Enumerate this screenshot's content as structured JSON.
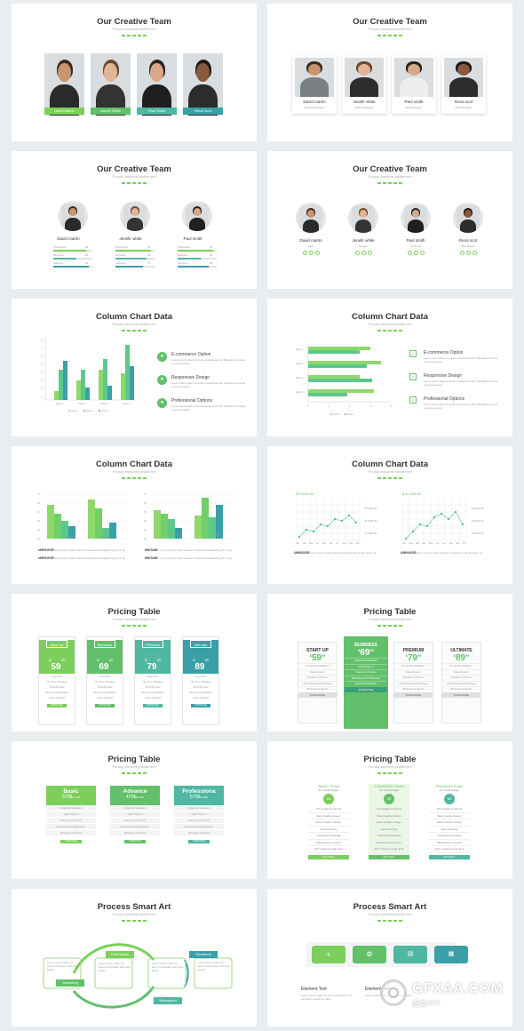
{
  "titles": {
    "team": "Our Creative Team",
    "chart": "Column Chart Data",
    "pricing": "Pricing Table",
    "process": "Process Smart Art"
  },
  "subtitle": "Put your awesome subtitle here",
  "slide1": {
    "members": [
      "David Martin",
      "Jenefir White",
      "Paul Smith",
      "Rena Scot"
    ]
  },
  "slide2": {
    "members": [
      {
        "name": "David martin",
        "role": "Creative Designer"
      },
      {
        "name": "Jenefir white",
        "role": "Web Developer"
      },
      {
        "name": "Paul smith",
        "role": "Web Designer"
      },
      {
        "name": "Rena scot",
        "role": "Web Manager"
      }
    ]
  },
  "slide3": {
    "members": [
      {
        "name": "David martin",
        "skills": [
          {
            "label": "Photoshop",
            "pct": 84
          },
          {
            "label": "Ilustrator",
            "pct": 60
          },
          {
            "label": "Indesign",
            "pct": 90
          }
        ]
      },
      {
        "name": "Jenefir white",
        "skills": [
          {
            "label": "Photoshop",
            "pct": 90
          },
          {
            "label": "Ilustrator",
            "pct": 80
          },
          {
            "label": "Indesign",
            "pct": 70
          }
        ]
      },
      {
        "name": "Paul smith",
        "skills": [
          {
            "label": "Photoshop",
            "pct": 90
          },
          {
            "label": "Ilustrator",
            "pct": 60
          },
          {
            "label": "Indesign",
            "pct": 80
          }
        ]
      }
    ]
  },
  "slide4": {
    "members": [
      {
        "name": "David martin",
        "role": "CEO"
      },
      {
        "name": "Jenefir white",
        "role": "Design"
      },
      {
        "name": "Paul smith",
        "role": "Co & rent"
      },
      {
        "name": "Rena scot",
        "role": "Web Expert"
      }
    ]
  },
  "features": [
    {
      "title": "E-commerce Option",
      "desc": "Lorem ipsum dolor sit amet consectetur elit. Phasellus sit amet ex erat posuere."
    },
    {
      "title": "Responsive Design",
      "desc": "Lorem ipsum dolor sit amet consectetur elit. Phasellus sit amet ex erat posuere."
    },
    {
      "title": "Professional Options",
      "desc": "Lorem ipsum dolor sit amet consectetur elit. Phasellus sit amet ex erat posuere."
    }
  ],
  "slide7": {
    "labels": [
      "E-COST",
      "E-COST",
      "E-COST",
      "E-COST"
    ],
    "captions": [
      {
        "head": "UNPAGOR",
        "text": "Lorem ipsum dolor sit amet consectetur adipiscing elit vel quam mi"
      },
      {
        "head": "MISTAMI",
        "text": "Lorem ipsum dolor sit amet consectetur adipiscing elit vel quam mi"
      },
      {
        "head": "UNPAGOR",
        "text": "Lorem ipsum dolor sit amet consectetur adipiscing elit vel quam mi"
      },
      {
        "head": "MISTAMI",
        "text": "Lorem ipsum dolor sit amet consectetur adipiscing elit vel quam mi"
      }
    ]
  },
  "slide8": {
    "left": {
      "value": "$75,924.00",
      "axis": [
        "$ 5000.00",
        "$ 3000.00",
        "$ 1000.00"
      ]
    },
    "right": {
      "value": "$ 42,958.99",
      "axis": [
        "$ 5000.00",
        "$ 3000.00",
        "$ 1000.00"
      ]
    },
    "months": [
      "Jan",
      "Feb",
      "Mar",
      "Apr",
      "May",
      "Jun",
      "Jul",
      "Aug",
      "Sep",
      "Oct"
    ],
    "captions": [
      {
        "head": "UNPAGOR",
        "text": "Lorem ipsum dolor sit amet consectetur elit vel quam mi"
      },
      {
        "head": "UNPAGOR",
        "text": "Lorem ipsum dolor sit amet consectetur elit vel quam mi"
      }
    ]
  },
  "plans": [
    "Start Up",
    "Business",
    "Premium",
    "Ultimate"
  ],
  "plans_upper": [
    "START UP",
    "BUSINESS",
    "PREMIUM",
    "ULTIMATE"
  ],
  "prices": [
    "59",
    "69",
    "79",
    "89"
  ],
  "cents": "99",
  "features9": [
    "Keyword",
    "No Time Tracking",
    "500 Mb Host",
    "Next Level Avalible",
    "User Defined"
  ],
  "features10": [
    "Financial Guidance",
    "Sales Report",
    "Support in Person",
    "Branding And Marketing",
    "Business Analysis"
  ],
  "purchase": "PURCHASE",
  "slide11": {
    "plans": [
      {
        "name": "Basic",
        "price": "370$"
      },
      {
        "name": "Advance",
        "price": "470$"
      },
      {
        "name": "Professiona",
        "price": "570$"
      }
    ],
    "per": "/month",
    "items": [
      "Financial Guidance",
      "Sales Report",
      "Support in Person",
      "Branding And Marketing",
      "Business Analysis"
    ]
  },
  "slide12": {
    "plans": [
      {
        "name": "BASIC PLAN",
        "price": "20"
      },
      {
        "name": "STANDARD PLAN",
        "price": "35"
      },
      {
        "name": "PREMIUM PLAN",
        "price": "50"
      }
    ],
    "sub": "For small budget",
    "items": [
      "10x budget of friends",
      "Best creative design",
      "Extra creative design",
      "Fast watching",
      "Unlimited Download",
      "Maintenance support",
      "24/7 customer help desk"
    ],
    "btn": "Purchase"
  },
  "slide13": {
    "steps": [
      "Drive ideas",
      "Marketing",
      "Brainstorm",
      "Revisions"
    ],
    "text": "Lorem ipsum dolor sit amet consectetur elit lorem ipsum"
  },
  "slide14": {
    "elements": [
      {
        "title": "Element Text",
        "text": "Lorem ipsum dolor sit amet consectetur elit sed diam nonummy nibh"
      },
      {
        "title": "Element Text",
        "text": "Lorem ipsum dolor sit amet consectetur"
      }
    ]
  },
  "watermark": {
    "brand": "GFXAA.COM",
    "sub": "图窝PPT"
  }
}
